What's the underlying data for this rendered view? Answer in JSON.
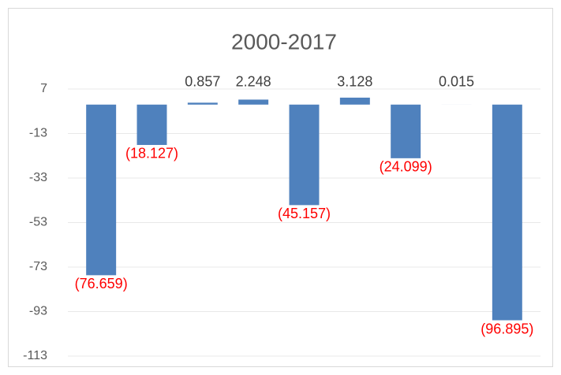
{
  "chart_data": {
    "type": "bar",
    "title": "2000-2017",
    "categories": [
      null,
      null,
      null,
      null,
      null,
      null,
      null,
      null,
      null
    ],
    "values": [
      -76.659,
      -18.127,
      0.857,
      2.248,
      -45.157,
      3.128,
      -24.099,
      0.015,
      -96.895
    ],
    "value_labels": [
      "(76.659)",
      "(18.127)",
      "0.857",
      "2.248",
      "(45.157)",
      "3.128",
      "(24.099)",
      "0.015",
      "(96.895)"
    ],
    "color": "#4f81bd",
    "label_color": "#404040",
    "negative_label_color": "#ff0000",
    "ylim": [
      -113,
      7
    ],
    "yticks": [
      7,
      -13,
      -33,
      -53,
      -73,
      -93,
      -113
    ],
    "grid": true
  }
}
